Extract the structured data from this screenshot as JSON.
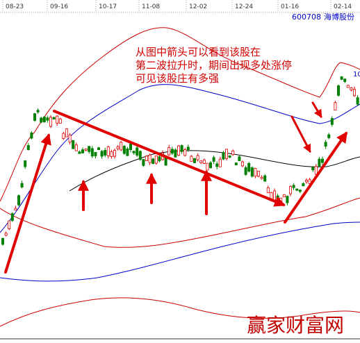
{
  "header": {
    "dates": [
      "08-23",
      "09-16",
      "10-17",
      "11-08",
      "12-02",
      "12-24",
      "01-16",
      "02-14"
    ],
    "code": "600708",
    "name": "海博股份",
    "edge_label": "10"
  },
  "annotation": [
    "从图中箭头可以看到该股在",
    "第二波拉升时，期间出现多处涨停",
    "可见该股庄有多强"
  ],
  "watermark": "赢家财富网"
}
